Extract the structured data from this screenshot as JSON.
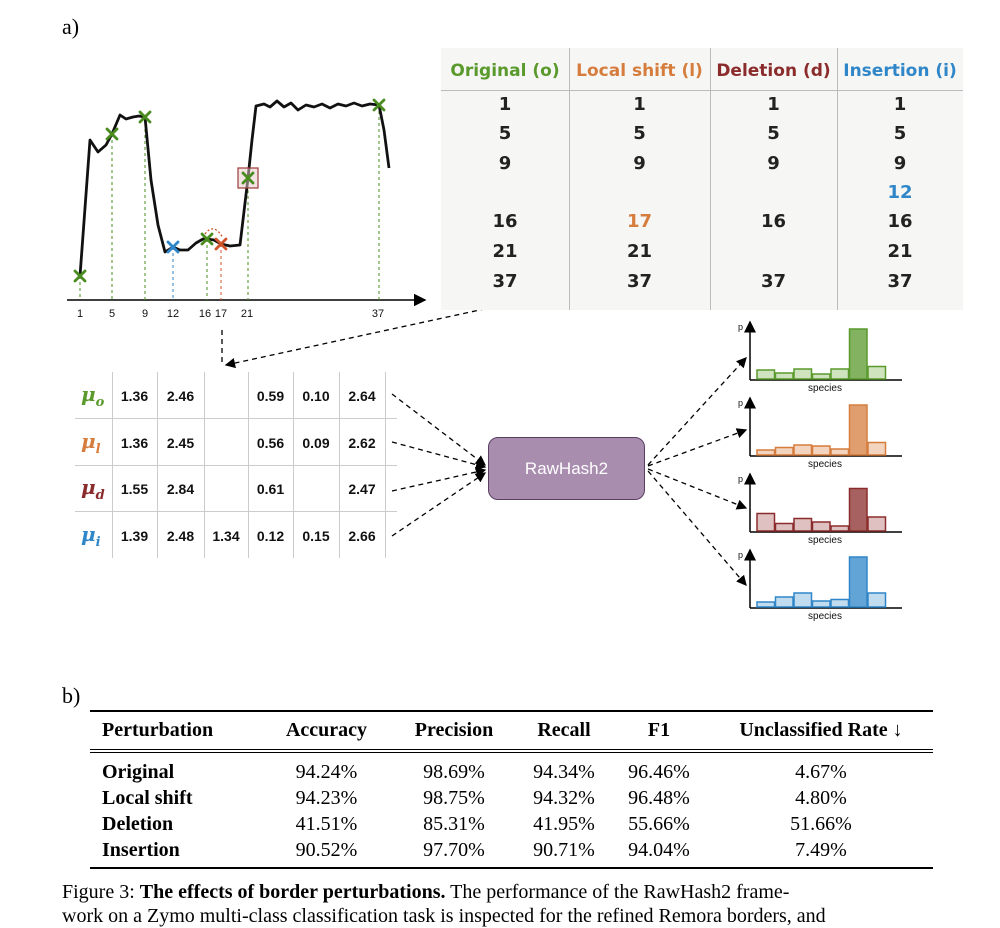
{
  "panel_a": {
    "label": "a)",
    "signal_axis_ticks": [
      "1",
      "5",
      "9",
      "12",
      "16",
      "17",
      "21",
      "37"
    ],
    "borders_table": {
      "columns": [
        {
          "header": "Original (o)",
          "color": "#5a9a2c",
          "cells": [
            "1",
            "5",
            "9",
            "",
            "16",
            "21",
            "37"
          ]
        },
        {
          "header": "Local shift (l)",
          "color": "#d67d3e",
          "cells": [
            "1",
            "5",
            "9",
            "",
            "17",
            "21",
            "37"
          ]
        },
        {
          "header": "Deletion (d)",
          "color": "#8b2c2c",
          "cells": [
            "1",
            "5",
            "9",
            "",
            "16",
            "",
            "37"
          ]
        },
        {
          "header": "Insertion (i)",
          "color": "#2f86c8",
          "cells": [
            "1",
            "5",
            "9",
            "12",
            "16",
            "21",
            "37"
          ]
        }
      ],
      "highlight": {
        "local_shift": "17",
        "insertion": "12"
      }
    },
    "mu_table": [
      {
        "symbol": "μ",
        "sub": "o",
        "color": "#5a9a2c",
        "values": [
          "1.36",
          "2.46",
          "",
          "0.59",
          "0.10",
          "2.64"
        ]
      },
      {
        "symbol": "μ",
        "sub": "l",
        "color": "#d67d3e",
        "values": [
          "1.36",
          "2.45",
          "",
          "0.56",
          "0.09",
          "2.62"
        ]
      },
      {
        "symbol": "μ",
        "sub": "d",
        "color": "#8b2c2c",
        "values": [
          "1.55",
          "2.84",
          "",
          "0.61",
          "",
          "2.47"
        ]
      },
      {
        "symbol": "μ",
        "sub": "i",
        "color": "#2f86c8",
        "values": [
          "1.39",
          "2.48",
          "1.34",
          "0.12",
          "0.15",
          "2.66"
        ]
      }
    ],
    "rawhash_label": "RawHash2",
    "histograms": [
      {
        "color": "#5a9a2c",
        "fill": "#cfe3bf",
        "y_label": "p",
        "x_label": "species",
        "values": [
          0.18,
          0.12,
          0.2,
          0.1,
          0.2,
          1.0,
          0.25
        ]
      },
      {
        "color": "#d67d3e",
        "fill": "#f2d4bf",
        "y_label": "p",
        "x_label": "species",
        "values": [
          0.1,
          0.15,
          0.2,
          0.18,
          0.12,
          1.0,
          0.25
        ]
      },
      {
        "color": "#8b2c2c",
        "fill": "#dfc1c1",
        "y_label": "p",
        "x_label": "species",
        "values": [
          0.35,
          0.15,
          0.25,
          0.18,
          0.1,
          0.85,
          0.28
        ]
      },
      {
        "color": "#2f86c8",
        "fill": "#c2dcef",
        "y_label": "p",
        "x_label": "species",
        "values": [
          0.1,
          0.2,
          0.28,
          0.12,
          0.15,
          1.0,
          0.28
        ]
      }
    ]
  },
  "panel_b": {
    "label": "b)",
    "headers": [
      "Perturbation",
      "Accuracy",
      "Precision",
      "Recall",
      "F1",
      "Unclassified Rate ↓"
    ],
    "rows": [
      [
        "Original",
        "94.24%",
        "98.69%",
        "94.34%",
        "96.46%",
        "4.67%"
      ],
      [
        "Local shift",
        "94.23%",
        "98.75%",
        "94.32%",
        "96.48%",
        "4.80%"
      ],
      [
        "Deletion",
        "41.51%",
        "85.31%",
        "41.95%",
        "55.66%",
        "51.66%"
      ],
      [
        "Insertion",
        "90.52%",
        "97.70%",
        "90.71%",
        "94.04%",
        "7.49%"
      ]
    ]
  },
  "caption": {
    "prefix": "Figure 3: ",
    "bold": "The effects of border perturbations.",
    "line1_rest": " The performance of the RawHash2 frame-",
    "line2": "work on a Zymo multi-class classification task is inspected for the refined Remora borders, and"
  }
}
